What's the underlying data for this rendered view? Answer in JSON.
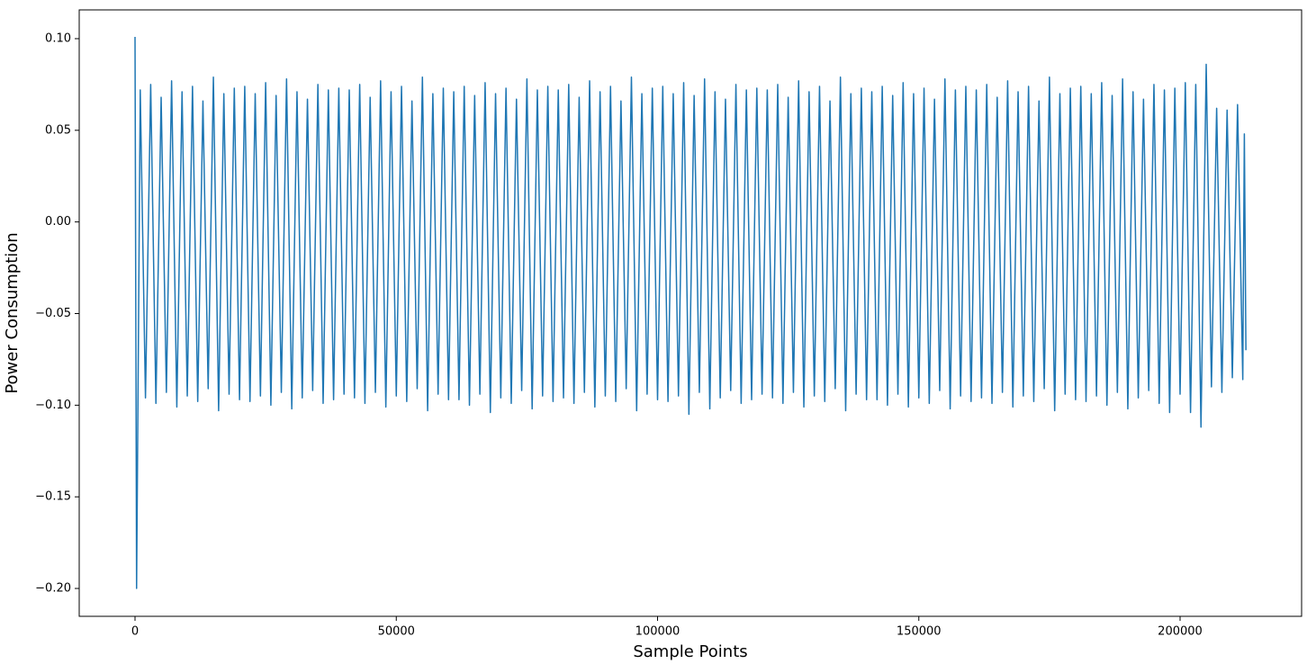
{
  "chart_data": {
    "type": "line",
    "x_label": "Sample Points",
    "y_label": "Power Consumption",
    "xlim": [
      -10680,
      223256
    ],
    "ylim": [
      -0.2152,
      0.1157
    ],
    "xticks": [
      0,
      50000,
      100000,
      150000,
      200000
    ],
    "yticks": [
      {
        "value": -0.2,
        "label": "−0.20"
      },
      {
        "value": -0.15,
        "label": "−0.15"
      },
      {
        "value": -0.1,
        "label": "−0.10"
      },
      {
        "value": -0.05,
        "label": "−0.05"
      },
      {
        "value": 0,
        "label": "0.00"
      },
      {
        "value": 0.05,
        "label": "0.05"
      },
      {
        "value": 0.1,
        "label": "0.10"
      }
    ],
    "grid": false,
    "series": [
      {
        "color": "#1f77b4",
        "x": [
          0,
          300,
          1000,
          2000,
          3000,
          4000,
          5000,
          6000,
          7000,
          8000,
          9000,
          10000,
          11000,
          12000,
          13000,
          14000,
          15000,
          16000,
          17000,
          18000,
          19000,
          20000,
          21000,
          22000,
          23000,
          24000,
          25000,
          26000,
          27000,
          28000,
          29000,
          30000,
          31000,
          32000,
          33000,
          34000,
          35000,
          36000,
          37000,
          38000,
          39000,
          40000,
          41000,
          42000,
          43000,
          44000,
          45000,
          46000,
          47000,
          48000,
          49000,
          50000,
          51000,
          52000,
          53000,
          54000,
          55000,
          56000,
          57000,
          58000,
          59000,
          60000,
          61000,
          62000,
          63000,
          64000,
          65000,
          66000,
          67000,
          68000,
          69000,
          70000,
          71000,
          72000,
          73000,
          74000,
          75000,
          76000,
          77000,
          78000,
          79000,
          80000,
          81000,
          82000,
          83000,
          84000,
          85000,
          86000,
          87000,
          88000,
          89000,
          90000,
          91000,
          92000,
          93000,
          94000,
          95000,
          96000,
          97000,
          98000,
          99000,
          100000,
          101000,
          102000,
          103000,
          104000,
          105000,
          106000,
          107000,
          108000,
          109000,
          110000,
          111000,
          112000,
          113000,
          114000,
          115000,
          116000,
          117000,
          118000,
          119000,
          120000,
          121000,
          122000,
          123000,
          124000,
          125000,
          126000,
          127000,
          128000,
          129000,
          130000,
          131000,
          132000,
          133000,
          134000,
          135000,
          136000,
          137000,
          138000,
          139000,
          140000,
          141000,
          142000,
          143000,
          144000,
          145000,
          146000,
          147000,
          148000,
          149000,
          150000,
          151000,
          152000,
          153000,
          154000,
          155000,
          156000,
          157000,
          158000,
          159000,
          160000,
          161000,
          162000,
          163000,
          164000,
          165000,
          166000,
          167000,
          168000,
          169000,
          170000,
          171000,
          172000,
          173000,
          174000,
          175000,
          176000,
          177000,
          178000,
          179000,
          180000,
          181000,
          182000,
          183000,
          184000,
          185000,
          186000,
          187000,
          188000,
          189000,
          190000,
          191000,
          192000,
          193000,
          194000,
          195000,
          196000,
          197000,
          198000,
          199000,
          200000,
          201000,
          202000,
          203000,
          204000,
          205000,
          206000,
          207000,
          208000,
          209000,
          210000,
          211000,
          212000,
          212300,
          212600
        ],
        "values": [
          0.101,
          -0.2,
          0.072,
          -0.096,
          0.075,
          -0.099,
          0.068,
          -0.093,
          0.077,
          -0.101,
          0.071,
          -0.095,
          0.074,
          -0.098,
          0.066,
          -0.091,
          0.079,
          -0.103,
          0.07,
          -0.094,
          0.073,
          -0.097,
          0.074,
          -0.098,
          0.07,
          -0.095,
          0.076,
          -0.1,
          0.069,
          -0.093,
          0.078,
          -0.102,
          0.071,
          -0.096,
          0.067,
          -0.092,
          0.075,
          -0.099,
          0.072,
          -0.097,
          0.073,
          -0.094,
          0.072,
          -0.096,
          0.075,
          -0.099,
          0.068,
          -0.093,
          0.077,
          -0.101,
          0.071,
          -0.095,
          0.074,
          -0.098,
          0.066,
          -0.091,
          0.079,
          -0.103,
          0.07,
          -0.094,
          0.073,
          -0.097,
          0.071,
          -0.097,
          0.074,
          -0.1,
          0.069,
          -0.094,
          0.076,
          -0.104,
          0.07,
          -0.096,
          0.073,
          -0.099,
          0.067,
          -0.092,
          0.078,
          -0.102,
          0.072,
          -0.095,
          0.074,
          -0.098,
          0.072,
          -0.096,
          0.075,
          -0.099,
          0.068,
          -0.093,
          0.077,
          -0.101,
          0.071,
          -0.095,
          0.074,
          -0.098,
          0.066,
          -0.091,
          0.079,
          -0.103,
          0.07,
          -0.094,
          0.073,
          -0.097,
          0.074,
          -0.098,
          0.07,
          -0.095,
          0.076,
          -0.105,
          0.069,
          -0.093,
          0.078,
          -0.102,
          0.071,
          -0.096,
          0.067,
          -0.092,
          0.075,
          -0.099,
          0.072,
          -0.097,
          0.073,
          -0.094,
          0.072,
          -0.096,
          0.075,
          -0.099,
          0.068,
          -0.093,
          0.077,
          -0.101,
          0.071,
          -0.095,
          0.074,
          -0.098,
          0.066,
          -0.091,
          0.079,
          -0.103,
          0.07,
          -0.094,
          0.073,
          -0.097,
          0.071,
          -0.097,
          0.074,
          -0.1,
          0.069,
          -0.094,
          0.076,
          -0.101,
          0.07,
          -0.096,
          0.073,
          -0.099,
          0.067,
          -0.092,
          0.078,
          -0.102,
          0.072,
          -0.095,
          0.074,
          -0.098,
          0.072,
          -0.096,
          0.075,
          -0.099,
          0.068,
          -0.093,
          0.077,
          -0.101,
          0.071,
          -0.095,
          0.074,
          -0.098,
          0.066,
          -0.091,
          0.079,
          -0.103,
          0.07,
          -0.094,
          0.073,
          -0.097,
          0.074,
          -0.098,
          0.07,
          -0.095,
          0.076,
          -0.1,
          0.069,
          -0.093,
          0.078,
          -0.102,
          0.071,
          -0.096,
          0.067,
          -0.092,
          0.075,
          -0.099,
          0.072,
          -0.104,
          0.073,
          -0.094,
          0.076,
          -0.104,
          0.075,
          -0.112,
          0.086,
          -0.09,
          0.062,
          -0.093,
          0.061,
          -0.085,
          0.064,
          -0.086,
          0.048,
          -0.07
        ]
      }
    ]
  }
}
